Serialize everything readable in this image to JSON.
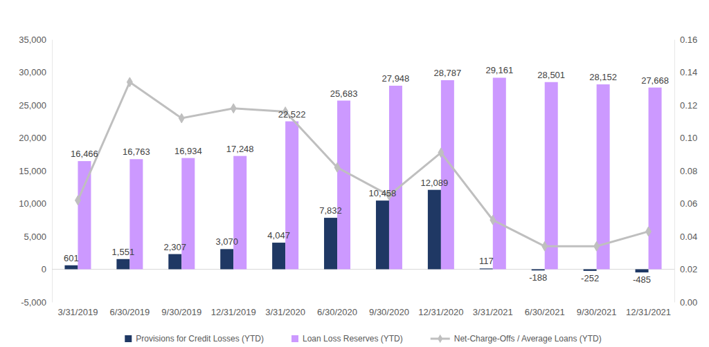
{
  "chart_data": {
    "type": "bar",
    "categories": [
      "3/31/2019",
      "6/30/2019",
      "9/30/2019",
      "12/31/2019",
      "3/31/2020",
      "6/30/2020",
      "9/30/2020",
      "12/31/2020",
      "3/31/2021",
      "6/30/2021",
      "9/30/2021",
      "12/31/2021"
    ],
    "series": [
      {
        "name": "Provisions for Credit Losses (YTD)",
        "color": "#1f3864",
        "data_labels": true,
        "values": [
          601,
          1551,
          2307,
          3070,
          4047,
          7832,
          10458,
          12089,
          117,
          -188,
          -252,
          -485
        ],
        "value_labels": [
          "601",
          "1,551",
          "2,307",
          "3,070",
          "4,047",
          "7,832",
          "10,458",
          "12,089",
          "117",
          "-188",
          "-252",
          "-485"
        ]
      },
      {
        "name": "Loan Loss Reserves (YTD)",
        "color": "#cc99ff",
        "data_labels": true,
        "values": [
          16466,
          16763,
          16934,
          17248,
          22522,
          25683,
          27948,
          28787,
          29161,
          28501,
          28152,
          27668
        ],
        "value_labels": [
          "16,466",
          "16,763",
          "16,934",
          "17,248",
          "22,522",
          "25,683",
          "27,948",
          "28,787",
          "29,161",
          "28,501",
          "28,152",
          "27,668"
        ]
      },
      {
        "name": "Net-Charge-Offs / Average Loans (YTD)",
        "type": "line",
        "axis": "y2",
        "color": "#bfbfbf",
        "marker": "diamond",
        "line_style": "solid",
        "values": [
          0.062,
          0.134,
          0.112,
          0.118,
          0.116,
          0.082,
          0.065,
          0.091,
          0.05,
          0.034,
          0.034,
          0.043
        ]
      }
    ],
    "ylim": [
      -5000,
      35000
    ],
    "yticks": [
      {
        "value": -5000,
        "label": "-5,000"
      },
      0,
      {
        "value": 5000,
        "label": "5,000"
      },
      {
        "value": 10000,
        "label": "10,000"
      },
      {
        "value": 15000,
        "label": "15,000"
      },
      {
        "value": 20000,
        "label": "20,000"
      },
      {
        "value": 25000,
        "label": "25,000"
      },
      {
        "value": 30000,
        "label": "30,000"
      },
      {
        "value": 35000,
        "label": "35,000"
      }
    ],
    "y2lim": [
      0,
      0.16
    ],
    "y2ticks": [
      {
        "value": 0,
        "label": "0.00"
      },
      0.02,
      0.04,
      0.06,
      0.08,
      {
        "value": 0.1,
        "label": "0.10"
      },
      0.12,
      0.14,
      0.16
    ],
    "grid": false,
    "legend": "bottom"
  }
}
